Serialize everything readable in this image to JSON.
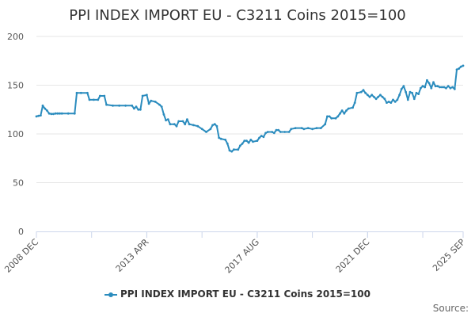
{
  "title": "PPI INDEX IMPORT EU - C3211 Coins 2015=100",
  "source_label": "Source:",
  "chart_data": {
    "type": "line",
    "title": "PPI INDEX IMPORT EU - C3211 Coins 2015=100",
    "xlabel": "",
    "ylabel": "",
    "ylim": [
      0,
      200
    ],
    "yticks": [
      0,
      50,
      100,
      150,
      200
    ],
    "xlim": [
      "2008-12",
      "2025-09"
    ],
    "xtick_labels": [
      "2008 DEC",
      "2013 APR",
      "2017 AUG",
      "2021 DEC",
      "2025 SEP"
    ],
    "grid": true,
    "legend": "bottom-center",
    "series": [
      {
        "name": "PPI INDEX IMPORT EU - C3211 Coins 2015=100",
        "color": "#2b8cbe",
        "points": [
          [
            "2008-12",
            118
          ],
          [
            "2009-01",
            118.5
          ],
          [
            "2009-02",
            119
          ],
          [
            "2009-03",
            129
          ],
          [
            "2009-04",
            126
          ],
          [
            "2009-05",
            124
          ],
          [
            "2009-06",
            121
          ],
          [
            "2009-07",
            120.5
          ],
          [
            "2009-08",
            120.5
          ],
          [
            "2009-09",
            121
          ],
          [
            "2009-10",
            121
          ],
          [
            "2009-11",
            121
          ],
          [
            "2009-12",
            121
          ],
          [
            "2010-03",
            121
          ],
          [
            "2010-06",
            121
          ],
          [
            "2010-07",
            142
          ],
          [
            "2010-09",
            142
          ],
          [
            "2010-12",
            142
          ],
          [
            "2011-01",
            135
          ],
          [
            "2011-03",
            135
          ],
          [
            "2011-05",
            135
          ],
          [
            "2011-06",
            139
          ],
          [
            "2011-08",
            139
          ],
          [
            "2011-09",
            130
          ],
          [
            "2011-12",
            129
          ],
          [
            "2012-03",
            129
          ],
          [
            "2012-06",
            129
          ],
          [
            "2012-09",
            129
          ],
          [
            "2012-10",
            126
          ],
          [
            "2012-11",
            128
          ],
          [
            "2012-12",
            125
          ],
          [
            "2013-01",
            125
          ],
          [
            "2013-02",
            139
          ],
          [
            "2013-04",
            140
          ],
          [
            "2013-05",
            131
          ],
          [
            "2013-06",
            134
          ],
          [
            "2013-08",
            133
          ],
          [
            "2013-10",
            130
          ],
          [
            "2013-11",
            128
          ],
          [
            "2013-12",
            120
          ],
          [
            "2014-01",
            114
          ],
          [
            "2014-02",
            115
          ],
          [
            "2014-03",
            110
          ],
          [
            "2014-05",
            110
          ],
          [
            "2014-06",
            108
          ],
          [
            "2014-07",
            113
          ],
          [
            "2014-09",
            113
          ],
          [
            "2014-10",
            110
          ],
          [
            "2014-11",
            115
          ],
          [
            "2014-12",
            110
          ],
          [
            "2015-02",
            109
          ],
          [
            "2015-04",
            108
          ],
          [
            "2015-06",
            105
          ],
          [
            "2015-08",
            102
          ],
          [
            "2015-10",
            105
          ],
          [
            "2015-11",
            109
          ],
          [
            "2015-12",
            110
          ],
          [
            "2016-01",
            108
          ],
          [
            "2016-02",
            96
          ],
          [
            "2016-03",
            95
          ],
          [
            "2016-05",
            94
          ],
          [
            "2016-06",
            90
          ],
          [
            "2016-07",
            83
          ],
          [
            "2016-08",
            82
          ],
          [
            "2016-09",
            84
          ],
          [
            "2016-11",
            84
          ],
          [
            "2016-12",
            88
          ],
          [
            "2017-01",
            90
          ],
          [
            "2017-02",
            93
          ],
          [
            "2017-03",
            93
          ],
          [
            "2017-04",
            91
          ],
          [
            "2017-05",
            94
          ],
          [
            "2017-06",
            92
          ],
          [
            "2017-08",
            93
          ],
          [
            "2017-09",
            96
          ],
          [
            "2017-10",
            98
          ],
          [
            "2017-11",
            97
          ],
          [
            "2017-12",
            101
          ],
          [
            "2018-01",
            102
          ],
          [
            "2018-03",
            102
          ],
          [
            "2018-04",
            101
          ],
          [
            "2018-05",
            104
          ],
          [
            "2018-06",
            104
          ],
          [
            "2018-07",
            102
          ],
          [
            "2018-09",
            102
          ],
          [
            "2018-11",
            102
          ],
          [
            "2018-12",
            105
          ],
          [
            "2019-02",
            106
          ],
          [
            "2019-05",
            106
          ],
          [
            "2019-06",
            105
          ],
          [
            "2019-08",
            106
          ],
          [
            "2019-10",
            105
          ],
          [
            "2019-12",
            106
          ],
          [
            "2020-02",
            106
          ],
          [
            "2020-04",
            110
          ],
          [
            "2020-05",
            118
          ],
          [
            "2020-06",
            118
          ],
          [
            "2020-07",
            116
          ],
          [
            "2020-09",
            116
          ],
          [
            "2020-10",
            118
          ],
          [
            "2020-11",
            121
          ],
          [
            "2020-12",
            124
          ],
          [
            "2021-01",
            121
          ],
          [
            "2021-02",
            124
          ],
          [
            "2021-03",
            126
          ],
          [
            "2021-05",
            127
          ],
          [
            "2021-06",
            132
          ],
          [
            "2021-07",
            142
          ],
          [
            "2021-09",
            143
          ],
          [
            "2021-10",
            145
          ],
          [
            "2021-11",
            142
          ],
          [
            "2021-12",
            140
          ],
          [
            "2022-01",
            138
          ],
          [
            "2022-02",
            140
          ],
          [
            "2022-03",
            138
          ],
          [
            "2022-04",
            136
          ],
          [
            "2022-05",
            138
          ],
          [
            "2022-06",
            140
          ],
          [
            "2022-07",
            138
          ],
          [
            "2022-08",
            136
          ],
          [
            "2022-09",
            132
          ],
          [
            "2022-10",
            133
          ],
          [
            "2022-11",
            132
          ],
          [
            "2022-12",
            135
          ],
          [
            "2023-01",
            133
          ],
          [
            "2023-02",
            135
          ],
          [
            "2023-03",
            140
          ],
          [
            "2023-04",
            146
          ],
          [
            "2023-05",
            149
          ],
          [
            "2023-06",
            143
          ],
          [
            "2023-07",
            135
          ],
          [
            "2023-08",
            143
          ],
          [
            "2023-09",
            142
          ],
          [
            "2023-10",
            136
          ],
          [
            "2023-11",
            142
          ],
          [
            "2023-12",
            141
          ],
          [
            "2024-01",
            147
          ],
          [
            "2024-02",
            149
          ],
          [
            "2024-03",
            148
          ],
          [
            "2024-04",
            155
          ],
          [
            "2024-05",
            152
          ],
          [
            "2024-06",
            147
          ],
          [
            "2024-07",
            153
          ],
          [
            "2024-08",
            149
          ],
          [
            "2024-09",
            149
          ],
          [
            "2024-10",
            148
          ],
          [
            "2024-11",
            148
          ],
          [
            "2024-12",
            148
          ],
          [
            "2025-01",
            147
          ],
          [
            "2025-02",
            149
          ],
          [
            "2025-03",
            147
          ],
          [
            "2025-04",
            148
          ],
          [
            "2025-05",
            146
          ],
          [
            "2025-06",
            166
          ],
          [
            "2025-07",
            167
          ],
          [
            "2025-08",
            169
          ],
          [
            "2025-09",
            170
          ]
        ]
      }
    ]
  }
}
